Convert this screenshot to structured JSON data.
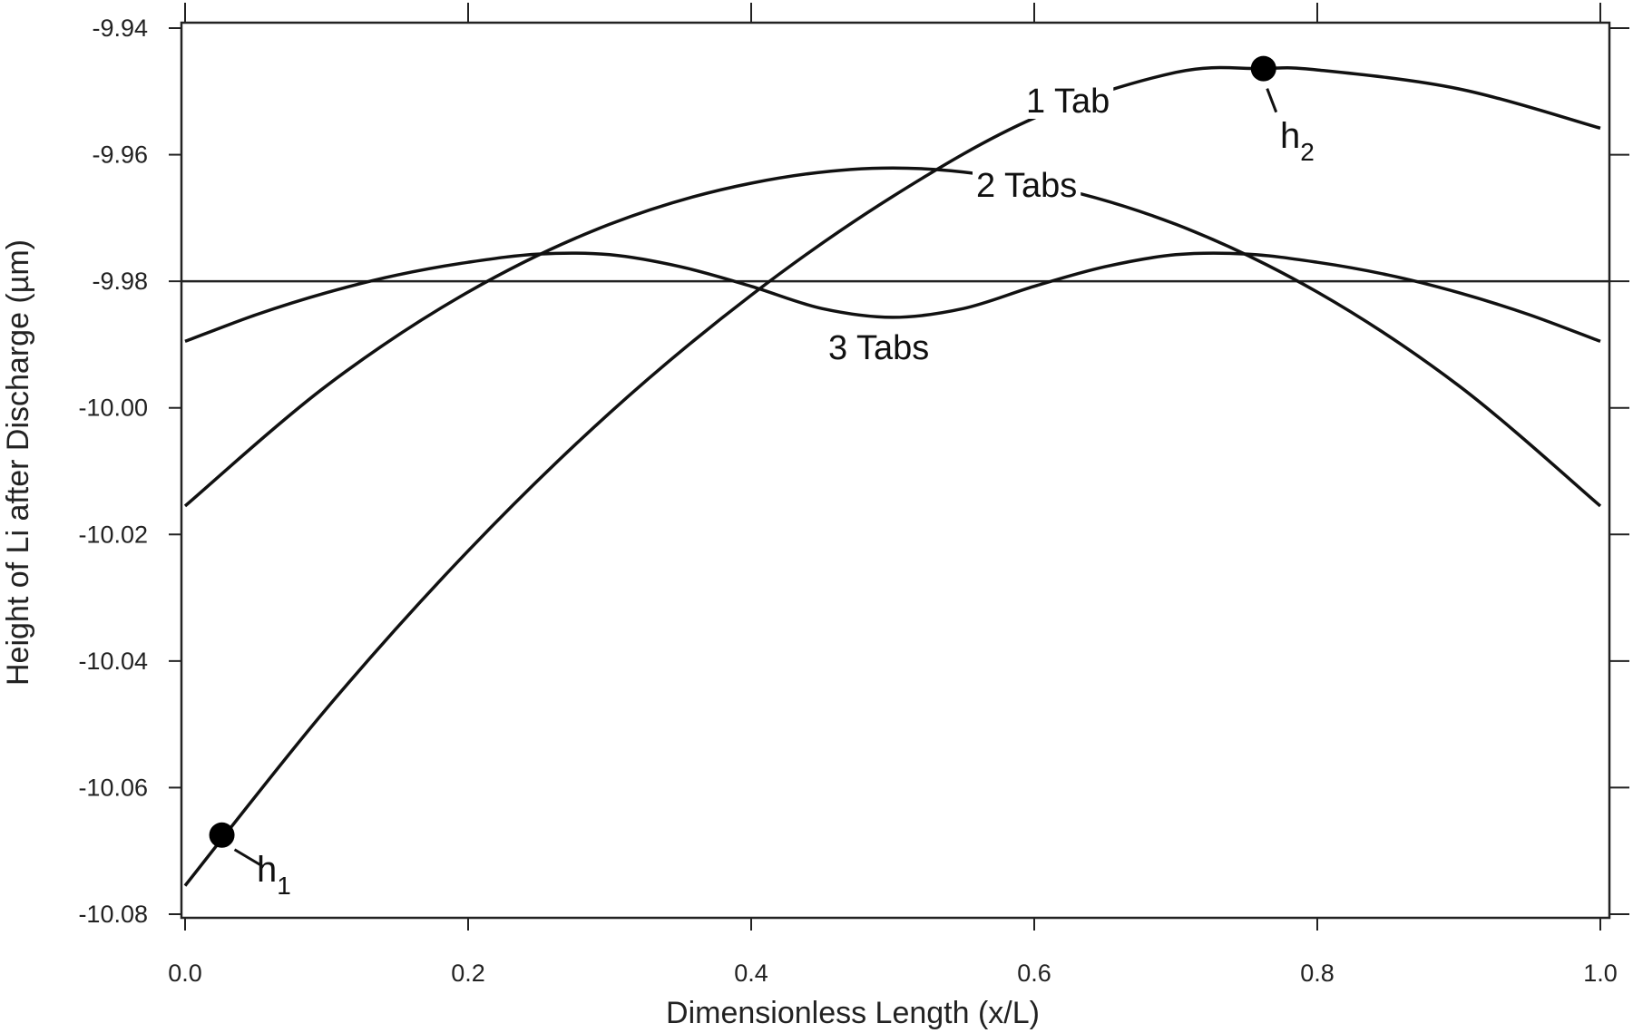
{
  "chart_data": {
    "type": "line",
    "title": "",
    "xlabel": "Dimensionless Length (x/L)",
    "ylabel": "Height of Li after Discharge (µm)",
    "xlim": [
      0.0,
      1.0
    ],
    "ylim": [
      -10.08,
      -9.94
    ],
    "xticks": [
      "0.0",
      "0.2",
      "0.4",
      "0.6",
      "0.8",
      "1.0"
    ],
    "yticks": [
      "-9.94",
      "-9.96",
      "-9.98",
      "-10.00",
      "-10.02",
      "-10.04",
      "-10.06",
      "-10.08"
    ],
    "grid": false,
    "legend": "none",
    "reference_line": {
      "y": -9.98
    },
    "series": [
      {
        "name": "1 Tab",
        "x": [
          0.0,
          0.1,
          0.2,
          0.3,
          0.4,
          0.5,
          0.6,
          0.7,
          0.76,
          0.8,
          0.9,
          1.0
        ],
        "y": [
          -10.0755,
          -10.0475,
          -10.0226,
          -10.0008,
          -9.9822,
          -9.9666,
          -9.9542,
          -9.947,
          -9.9464,
          -9.9466,
          -9.9496,
          -9.9558
        ]
      },
      {
        "name": "2 Tabs",
        "x": [
          0.0,
          0.1,
          0.2,
          0.3,
          0.4,
          0.5,
          0.6,
          0.7,
          0.8,
          0.9,
          1.0
        ],
        "y": [
          -10.0155,
          -9.9965,
          -9.9817,
          -9.971,
          -9.9645,
          -9.9621,
          -9.9645,
          -9.971,
          -9.9817,
          -9.9965,
          -10.0155
        ]
      },
      {
        "name": "3 Tabs",
        "x": [
          0.0,
          0.05,
          0.1,
          0.15,
          0.2,
          0.25,
          0.3,
          0.35,
          0.4,
          0.45,
          0.5,
          0.55,
          0.6,
          0.65,
          0.7,
          0.75,
          0.8,
          0.85,
          0.9,
          0.95,
          1.0
        ],
        "y": [
          -9.9895,
          -9.9853,
          -9.9818,
          -9.979,
          -9.977,
          -9.9757,
          -9.9758,
          -9.9777,
          -9.9808,
          -9.9843,
          -9.9857,
          -9.9843,
          -9.9808,
          -9.9777,
          -9.9758,
          -9.9757,
          -9.977,
          -9.979,
          -9.9818,
          -9.9853,
          -9.9895
        ]
      }
    ],
    "points": [
      {
        "name": "h",
        "subscript": "1",
        "x": 0.026,
        "y": -10.0675
      },
      {
        "name": "h",
        "subscript": "2",
        "x": 0.762,
        "y": -9.9464
      }
    ]
  }
}
